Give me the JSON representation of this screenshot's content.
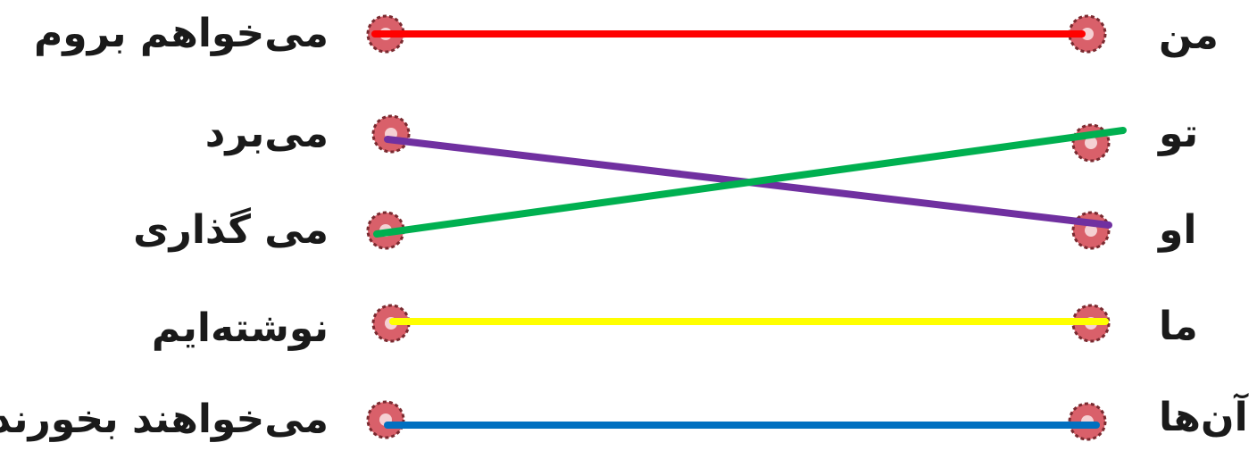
{
  "left_words": [
    {
      "text": "می‌خواهم بروم"
    },
    {
      "text": "می‌برد"
    },
    {
      "text": "می گذاری"
    },
    {
      "text": "نوشته‌ایم"
    },
    {
      "text": "می‌خواهند بخورند"
    }
  ],
  "right_words": [
    {
      "text": "من"
    },
    {
      "text": "تو"
    },
    {
      "text": "او"
    },
    {
      "text": "ما"
    },
    {
      "text": "آن‌ها"
    }
  ],
  "connections": [
    {
      "from_left": 0,
      "to_right": 0,
      "color": "#ff0000"
    },
    {
      "from_left": 1,
      "to_right": 2,
      "color": "#7030a0"
    },
    {
      "from_left": 2,
      "to_right": 1,
      "color": "#00b050"
    },
    {
      "from_left": 3,
      "to_right": 3,
      "color": "#ffff00"
    },
    {
      "from_left": 4,
      "to_right": 4,
      "color": "#0070c0"
    }
  ],
  "dot_color": "#d9606a"
}
